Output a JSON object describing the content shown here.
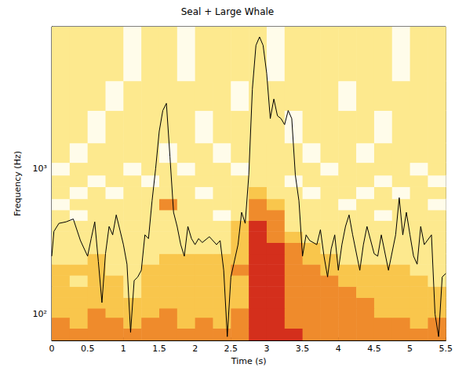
{
  "chart_data": {
    "type": "heatmap",
    "title": "Seal + Large Whale",
    "x_label": "Time (s)",
    "y_label": "Frequency (Hz)",
    "log": "y",
    "grid": false,
    "xlim": [
      0,
      5.5
    ],
    "xticks": [
      0,
      0.5,
      1,
      1.5,
      2,
      2.5,
      3,
      3.5,
      4,
      4.5,
      5,
      5.5
    ],
    "ylim": [
      66,
      9400
    ],
    "yticks": [
      {
        "value": 100,
        "label": "10²"
      },
      {
        "value": 1000,
        "label": "10³"
      }
    ],
    "cells": {
      "time_edges": [
        0,
        0.25,
        0.5,
        0.75,
        1,
        1.25,
        1.5,
        1.75,
        2,
        2.25,
        2.5,
        2.75,
        3,
        3.25,
        3.5,
        3.75,
        4,
        4.25,
        4.5,
        4.75,
        5,
        5.25,
        5.5
      ],
      "frequency_edges": [
        66,
        80,
        95,
        110,
        130,
        155,
        185,
        220,
        260,
        310,
        370,
        440,
        520,
        620,
        750,
        900,
        1100,
        1500,
        2500,
        4000,
        9400
      ],
      "value_range": [
        0,
        4
      ],
      "values": [
        [
          3,
          3,
          3,
          3,
          3,
          3,
          3,
          3,
          3,
          3,
          3,
          4,
          4,
          4,
          3,
          3,
          3,
          3,
          3,
          3,
          3,
          3
        ],
        [
          3,
          2,
          3,
          3,
          2,
          3,
          3,
          2,
          3,
          2,
          3,
          4,
          4,
          3,
          3,
          3,
          3,
          3,
          3,
          3,
          2,
          3
        ],
        [
          2,
          2,
          3,
          2,
          2,
          2,
          3,
          2,
          2,
          2,
          3,
          4,
          4,
          3,
          3,
          3,
          3,
          3,
          2,
          2,
          2,
          2
        ],
        [
          2,
          2,
          2,
          2,
          2,
          2,
          2,
          2,
          2,
          2,
          2,
          4,
          4,
          3,
          3,
          3,
          3,
          3,
          2,
          2,
          2,
          2
        ],
        [
          2,
          2,
          2,
          2,
          1,
          2,
          2,
          2,
          2,
          2,
          2,
          4,
          4,
          3,
          3,
          3,
          3,
          2,
          2,
          2,
          2,
          2
        ],
        [
          2,
          1,
          2,
          2,
          1,
          2,
          2,
          2,
          2,
          2,
          2,
          4,
          4,
          3,
          3,
          3,
          2,
          2,
          2,
          2,
          2,
          1
        ],
        [
          2,
          2,
          2,
          1,
          1,
          2,
          2,
          2,
          2,
          2,
          3,
          4,
          4,
          3,
          3,
          2,
          2,
          2,
          2,
          2,
          1,
          1
        ],
        [
          1,
          1,
          2,
          1,
          1,
          1,
          2,
          2,
          2,
          2,
          2,
          4,
          4,
          3,
          2,
          2,
          1,
          1,
          1,
          1,
          1,
          1
        ],
        [
          1,
          1,
          1,
          1,
          1,
          1,
          1,
          1,
          1,
          1,
          2,
          4,
          4,
          3,
          2,
          1,
          1,
          1,
          1,
          1,
          1,
          1
        ],
        [
          1,
          1,
          1,
          1,
          1,
          1,
          1,
          1,
          1,
          1,
          2,
          4,
          3,
          2,
          1,
          1,
          1,
          1,
          1,
          1,
          1,
          1
        ],
        [
          1,
          1,
          1,
          1,
          1,
          1,
          1,
          1,
          1,
          1,
          2,
          4,
          3,
          1,
          1,
          1,
          1,
          1,
          1,
          1,
          1,
          1
        ],
        [
          1,
          0,
          1,
          1,
          1,
          1,
          1,
          1,
          1,
          0,
          1,
          3,
          3,
          1,
          1,
          1,
          1,
          1,
          0,
          1,
          1,
          1
        ],
        [
          0,
          1,
          1,
          1,
          1,
          1,
          3,
          1,
          1,
          1,
          1,
          3,
          2,
          1,
          1,
          1,
          0,
          1,
          1,
          1,
          1,
          0
        ],
        [
          1,
          0,
          1,
          0,
          1,
          1,
          1,
          1,
          0,
          1,
          1,
          2,
          1,
          1,
          0,
          1,
          1,
          0,
          1,
          0,
          1,
          1
        ],
        [
          1,
          1,
          0,
          1,
          1,
          0,
          1,
          1,
          1,
          1,
          1,
          1,
          1,
          0,
          1,
          1,
          1,
          1,
          0,
          1,
          1,
          0
        ],
        [
          0,
          1,
          1,
          1,
          0,
          1,
          1,
          0,
          1,
          1,
          0,
          1,
          1,
          1,
          1,
          0,
          1,
          1,
          1,
          1,
          0,
          1
        ],
        [
          1,
          0,
          1,
          1,
          1,
          1,
          0,
          1,
          1,
          0,
          1,
          1,
          1,
          1,
          0,
          1,
          1,
          0,
          1,
          1,
          1,
          1
        ],
        [
          1,
          1,
          0,
          1,
          1,
          1,
          1,
          1,
          0,
          1,
          1,
          1,
          1,
          0,
          1,
          1,
          1,
          1,
          0,
          1,
          1,
          1
        ],
        [
          1,
          1,
          1,
          0,
          1,
          1,
          1,
          1,
          1,
          1,
          0,
          1,
          1,
          1,
          1,
          1,
          0,
          1,
          1,
          1,
          1,
          1
        ],
        [
          1,
          1,
          1,
          1,
          0,
          1,
          1,
          0,
          1,
          1,
          1,
          1,
          0,
          1,
          1,
          1,
          1,
          1,
          1,
          0,
          1,
          1
        ]
      ]
    },
    "series": [
      {
        "type": "line",
        "color": "#000000",
        "x": [
          0,
          0.03,
          0.1,
          0.2,
          0.3,
          0.4,
          0.5,
          0.55,
          0.6,
          0.65,
          0.7,
          0.75,
          0.8,
          0.85,
          0.9,
          0.95,
          1.0,
          1.05,
          1.1,
          1.15,
          1.2,
          1.25,
          1.3,
          1.35,
          1.4,
          1.45,
          1.5,
          1.55,
          1.6,
          1.65,
          1.7,
          1.75,
          1.8,
          1.85,
          1.9,
          1.95,
          2.0,
          2.05,
          2.1,
          2.2,
          2.3,
          2.35,
          2.4,
          2.45,
          2.5,
          2.6,
          2.65,
          2.7,
          2.75,
          2.8,
          2.85,
          2.9,
          2.95,
          3.0,
          3.05,
          3.1,
          3.15,
          3.2,
          3.25,
          3.3,
          3.35,
          3.4,
          3.45,
          3.5,
          3.55,
          3.6,
          3.7,
          3.75,
          3.8,
          3.85,
          3.9,
          3.95,
          4.0,
          4.05,
          4.1,
          4.15,
          4.2,
          4.3,
          4.35,
          4.4,
          4.5,
          4.55,
          4.6,
          4.7,
          4.8,
          4.85,
          4.9,
          4.95,
          5.0,
          5.05,
          5.1,
          5.15,
          5.2,
          5.3,
          5.35,
          5.4,
          5.45,
          5.5
        ],
        "values": [
          250,
          370,
          420,
          430,
          450,
          320,
          250,
          330,
          430,
          230,
          120,
          260,
          400,
          350,
          480,
          380,
          300,
          220,
          75,
          170,
          180,
          200,
          350,
          330,
          600,
          1000,
          1800,
          2500,
          2800,
          1200,
          500,
          400,
          300,
          250,
          400,
          330,
          300,
          330,
          310,
          340,
          300,
          320,
          200,
          70,
          180,
          300,
          500,
          420,
          900,
          3500,
          7000,
          8000,
          7000,
          4500,
          2200,
          3000,
          2300,
          2200,
          2000,
          2500,
          2200,
          900,
          600,
          250,
          350,
          320,
          300,
          380,
          250,
          180,
          280,
          350,
          200,
          300,
          400,
          480,
          350,
          200,
          300,
          400,
          260,
          250,
          350,
          200,
          350,
          630,
          350,
          500,
          350,
          250,
          220,
          400,
          300,
          350,
          100,
          70,
          180,
          190
        ]
      }
    ]
  }
}
